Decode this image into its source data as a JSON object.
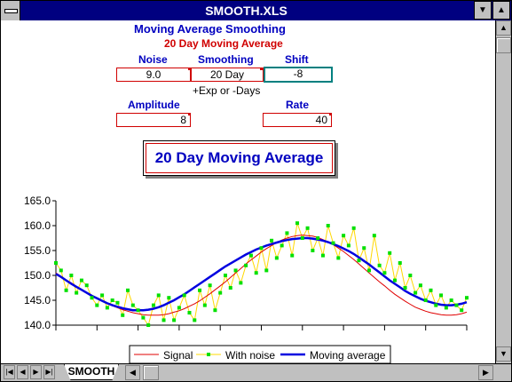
{
  "window": {
    "title": "SMOOTH.XLS",
    "minimize_glyph": "▼",
    "maximize_glyph": "▲"
  },
  "sheet": {
    "title": "Moving Average Smoothing",
    "subtitle": "20 Day Moving Average",
    "noise_label": "Noise",
    "noise_value": "9.0",
    "smoothing_label": "Smoothing",
    "smoothing_value": "20 Day",
    "smoothing_hint": "+Exp or -Days",
    "shift_label": "Shift",
    "shift_value": "-8",
    "amplitude_label": "Amplitude",
    "amplitude_value": "8",
    "rate_label": "Rate",
    "rate_value": "40",
    "button_label": "20 Day Moving Average"
  },
  "tabs": {
    "sheet_name": "SMOOTH"
  },
  "colors": {
    "title_blue": "#0000c0",
    "subtitle_red": "#d00000",
    "signal": "#e00000",
    "noise_line": "#ffd800",
    "noise_marker": "#00e000",
    "moving_average": "#0000e0"
  },
  "chart_data": {
    "type": "line",
    "ylim": [
      140.0,
      165.0
    ],
    "y_ticks": [
      "165.0",
      "160.0",
      "155.0",
      "150.0",
      "145.0",
      "140.0"
    ],
    "x": [
      0,
      1,
      2,
      3,
      4,
      5,
      6,
      7,
      8,
      9,
      10,
      11,
      12,
      13,
      14,
      15,
      16,
      17,
      18,
      19,
      20,
      21,
      22,
      23,
      24,
      25,
      26,
      27,
      28,
      29,
      30,
      31,
      32,
      33,
      34,
      35,
      36,
      37,
      38,
      39,
      40,
      41,
      42,
      43,
      44,
      45,
      46,
      47,
      48,
      49,
      50,
      51,
      52,
      53,
      54,
      55,
      56,
      57,
      58,
      59,
      60,
      61,
      62,
      63,
      64,
      65,
      66,
      67,
      68,
      69,
      70,
      71,
      72,
      73,
      74,
      75,
      76,
      77,
      78,
      79,
      80
    ],
    "series": [
      {
        "name": "Signal",
        "values": [
          150.5,
          149.8,
          149.1,
          148.5,
          147.8,
          147.2,
          146.6,
          146.0,
          145.4,
          144.9,
          144.4,
          143.9,
          143.5,
          143.1,
          142.8,
          142.5,
          142.3,
          142.1,
          142.0,
          142.0,
          142.0,
          142.1,
          142.3,
          142.6,
          142.9,
          143.3,
          143.8,
          144.3,
          144.9,
          145.6,
          146.3,
          147.1,
          147.9,
          148.7,
          149.6,
          150.5,
          151.4,
          152.3,
          153.1,
          153.9,
          154.7,
          155.4,
          156.0,
          156.6,
          157.1,
          157.5,
          157.8,
          158.0,
          158.1,
          158.0,
          157.9,
          157.6,
          157.2,
          156.7,
          156.2,
          155.5,
          154.8,
          154.0,
          153.2,
          152.3,
          151.4,
          150.5,
          149.6,
          148.7,
          147.9,
          147.0,
          146.2,
          145.5,
          144.8,
          144.2,
          143.6,
          143.2,
          142.8,
          142.5,
          142.3,
          142.1,
          142.0,
          142.0,
          142.1,
          142.3,
          142.6
        ]
      },
      {
        "name": "With noise",
        "values": [
          152.5,
          151.0,
          147.0,
          150.0,
          146.5,
          149.0,
          148.0,
          145.5,
          144.0,
          146.0,
          143.5,
          145.0,
          144.5,
          142.0,
          147.0,
          144.0,
          143.0,
          141.5,
          140.0,
          144.0,
          146.0,
          141.0,
          145.5,
          141.0,
          143.5,
          146.0,
          142.5,
          141.0,
          147.0,
          144.0,
          148.0,
          143.0,
          146.5,
          150.0,
          147.5,
          151.0,
          148.5,
          152.0,
          154.0,
          150.5,
          155.5,
          151.0,
          157.0,
          153.5,
          156.0,
          158.5,
          154.0,
          160.5,
          157.5,
          159.5,
          155.0,
          157.5,
          154.0,
          160.0,
          156.5,
          153.5,
          158.0,
          156.0,
          159.5,
          153.0,
          155.5,
          151.0,
          158.0,
          152.0,
          150.5,
          154.5,
          149.0,
          152.5,
          147.5,
          150.0,
          146.5,
          148.0,
          145.0,
          147.0,
          144.0,
          146.0,
          143.5,
          145.0,
          144.0,
          143.0,
          145.5
        ]
      },
      {
        "name": "Moving average",
        "values": [
          150.3,
          149.7,
          149.0,
          148.3,
          147.7,
          147.1,
          146.5,
          145.9,
          145.4,
          144.9,
          144.4,
          144.0,
          143.7,
          143.4,
          143.2,
          143.0,
          143.0,
          143.0,
          143.1,
          143.3,
          143.6,
          144.0,
          144.5,
          145.0,
          145.6,
          146.2,
          146.9,
          147.6,
          148.3,
          149.0,
          149.7,
          150.4,
          151.1,
          151.8,
          152.4,
          153.0,
          153.6,
          154.2,
          154.7,
          155.2,
          155.6,
          156.0,
          156.3,
          156.6,
          156.9,
          157.1,
          157.3,
          157.4,
          157.5,
          157.5,
          157.4,
          157.2,
          157.0,
          156.7,
          156.3,
          155.9,
          155.4,
          154.9,
          154.3,
          153.6,
          152.9,
          152.2,
          151.4,
          150.6,
          149.8,
          149.0,
          148.3,
          147.6,
          146.9,
          146.3,
          145.8,
          145.3,
          144.9,
          144.6,
          144.3,
          144.1,
          144.0,
          144.0,
          144.1,
          144.3,
          144.6
        ]
      }
    ]
  }
}
